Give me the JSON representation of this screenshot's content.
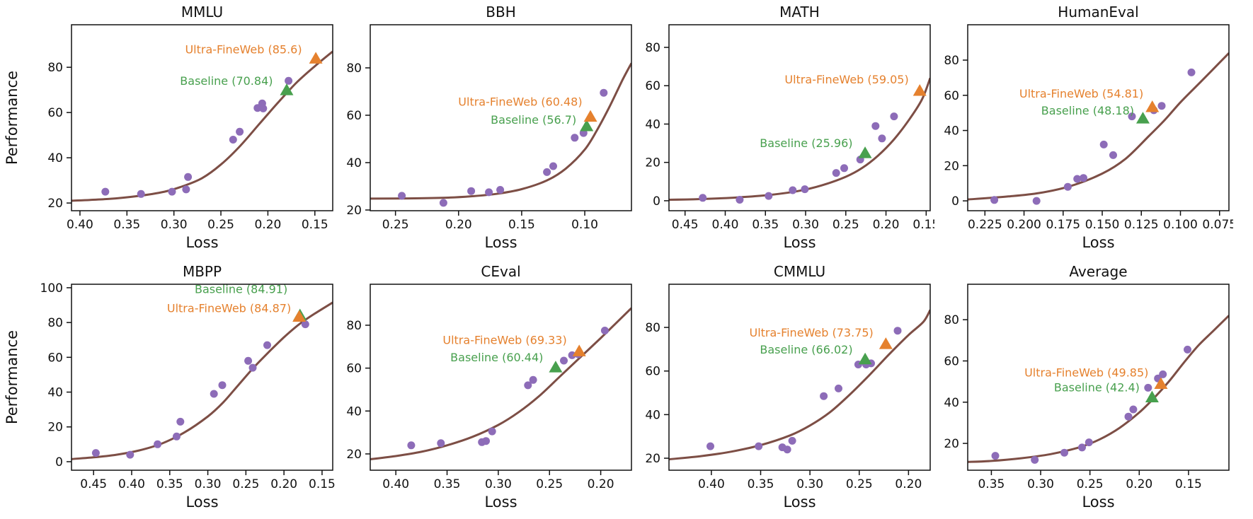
{
  "figure": {
    "xlabel": "Loss",
    "ylabel": "Performance",
    "series_names": {
      "ultra": "Ultra-FineWeb",
      "baseline": "Baseline"
    },
    "colors": {
      "scatter": "#8d6cb8",
      "curve": "#7d4e45",
      "ultra": "#e5812e",
      "baseline": "#48a04e",
      "text": "#111111"
    }
  },
  "chart_data": [
    {
      "type": "scatter",
      "title": "MMLU",
      "xlabel": "Loss",
      "ylabel": "Performance",
      "x_inverted": true,
      "xlim": [
        0.409,
        0.131
      ],
      "ylim": [
        16.6,
        98.8
      ],
      "x_ticks": [
        "0.40",
        "0.35",
        "0.30",
        "0.25",
        "0.20",
        "0.15"
      ],
      "y_ticks": [
        "20",
        "40",
        "60",
        "80"
      ],
      "points": [
        [
          0.373,
          25
        ],
        [
          0.335,
          24
        ],
        [
          0.302,
          25
        ],
        [
          0.287,
          26
        ],
        [
          0.285,
          31.5
        ],
        [
          0.237,
          48
        ],
        [
          0.23,
          51.5
        ],
        [
          0.211,
          62
        ],
        [
          0.206,
          64
        ],
        [
          0.205,
          61.8
        ],
        [
          0.178,
          74
        ]
      ],
      "curve": [
        [
          0.409,
          21
        ],
        [
          0.37,
          21.8
        ],
        [
          0.34,
          23
        ],
        [
          0.31,
          25
        ],
        [
          0.29,
          27.5
        ],
        [
          0.27,
          31
        ],
        [
          0.25,
          37
        ],
        [
          0.23,
          45
        ],
        [
          0.21,
          54.5
        ],
        [
          0.19,
          64
        ],
        [
          0.17,
          73
        ],
        [
          0.15,
          80.5
        ],
        [
          0.131,
          87
        ]
      ],
      "markers": {
        "ultra": {
          "x": 0.149,
          "y": 84,
          "value": 85.6,
          "label": "Ultra-FineWeb (85.6)",
          "label_offset": [
            -10,
            -7
          ]
        },
        "baseline": {
          "x": 0.18,
          "y": 70,
          "value": 70.84,
          "label": "Baseline (70.84)",
          "label_offset": [
            -10,
            -7
          ]
        }
      }
    },
    {
      "type": "scatter",
      "title": "BBH",
      "xlabel": "Loss",
      "ylabel": "",
      "x_inverted": true,
      "xlim": [
        0.27,
        0.063
      ],
      "ylim": [
        19.7,
        98.2
      ],
      "x_ticks": [
        "0.25",
        "0.20",
        "0.15",
        "0.10"
      ],
      "y_ticks": [
        "20",
        "40",
        "60",
        "80"
      ],
      "points": [
        [
          0.245,
          26
        ],
        [
          0.212,
          23
        ],
        [
          0.19,
          28
        ],
        [
          0.176,
          27.5
        ],
        [
          0.167,
          28.5
        ],
        [
          0.13,
          36
        ],
        [
          0.125,
          38.5
        ],
        [
          0.108,
          50.5
        ],
        [
          0.101,
          52.5
        ],
        [
          0.085,
          69.5
        ]
      ],
      "curve": [
        [
          0.27,
          24.8
        ],
        [
          0.24,
          24.9
        ],
        [
          0.21,
          25.2
        ],
        [
          0.19,
          25.8
        ],
        [
          0.17,
          26.8
        ],
        [
          0.15,
          28.8
        ],
        [
          0.13,
          32.5
        ],
        [
          0.115,
          37.5
        ],
        [
          0.1,
          45.5
        ],
        [
          0.09,
          54
        ],
        [
          0.08,
          64
        ],
        [
          0.07,
          75
        ],
        [
          0.063,
          82
        ]
      ],
      "markers": {
        "ultra": {
          "x": 0.0955,
          "y": 59.5,
          "value": 60.48,
          "label": "Ultra-FineWeb (60.48)",
          "label_offset": [
            -2,
            -15
          ]
        },
        "baseline": {
          "x": 0.0985,
          "y": 55.5,
          "value": 56.7,
          "label": "Baseline (56.7)",
          "label_offset": [
            -5,
            -3
          ]
        }
      }
    },
    {
      "type": "scatter",
      "title": "MATH",
      "xlabel": "Loss",
      "ylabel": "",
      "x_inverted": true,
      "xlim": [
        0.47,
        0.145
      ],
      "ylim": [
        -5.2,
        91.8
      ],
      "x_ticks": [
        "0.45",
        "0.40",
        "0.35",
        "0.30",
        "0.25",
        "0.20",
        "0.15"
      ],
      "y_ticks": [
        "0",
        "20",
        "40",
        "60",
        "80"
      ],
      "points": [
        [
          0.428,
          1.5
        ],
        [
          0.382,
          0.5
        ],
        [
          0.346,
          2.5
        ],
        [
          0.316,
          5.5
        ],
        [
          0.301,
          6
        ],
        [
          0.262,
          14.5
        ],
        [
          0.252,
          17
        ],
        [
          0.232,
          21.5
        ],
        [
          0.213,
          39
        ],
        [
          0.205,
          32.5
        ],
        [
          0.19,
          44
        ]
      ],
      "curve": [
        [
          0.47,
          0.5
        ],
        [
          0.43,
          0.9
        ],
        [
          0.39,
          1.6
        ],
        [
          0.35,
          2.8
        ],
        [
          0.31,
          5
        ],
        [
          0.28,
          8
        ],
        [
          0.25,
          12.5
        ],
        [
          0.23,
          17
        ],
        [
          0.21,
          23.5
        ],
        [
          0.19,
          32
        ],
        [
          0.17,
          43
        ],
        [
          0.155,
          53
        ],
        [
          0.145,
          64
        ]
      ],
      "markers": {
        "ultra": {
          "x": 0.158,
          "y": 57.5,
          "value": 59.05,
          "label": "Ultra-FineWeb (59.05)",
          "label_offset": [
            -6,
            -10
          ]
        },
        "baseline": {
          "x": 0.226,
          "y": 25,
          "value": 25.96,
          "label": "Baseline (25.96)",
          "label_offset": [
            -8,
            -8
          ]
        }
      }
    },
    {
      "type": "scatter",
      "title": "HumanEval",
      "xlabel": "Loss",
      "ylabel": "",
      "x_inverted": true,
      "xlim": [
        0.236,
        0.069
      ],
      "ylim": [
        -5.6,
        100.1
      ],
      "x_ticks": [
        "0.225",
        "0.200",
        "0.175",
        "0.150",
        "0.125",
        "0.100",
        "0.075"
      ],
      "y_ticks": [
        "0",
        "20",
        "40",
        "60",
        "80"
      ],
      "points": [
        [
          0.219,
          0.5
        ],
        [
          0.192,
          0
        ],
        [
          0.172,
          8
        ],
        [
          0.166,
          12.5
        ],
        [
          0.162,
          13
        ],
        [
          0.149,
          32
        ],
        [
          0.143,
          26
        ],
        [
          0.131,
          48
        ],
        [
          0.117,
          51.5
        ],
        [
          0.112,
          54
        ],
        [
          0.093,
          73
        ]
      ],
      "curve": [
        [
          0.236,
          0.8
        ],
        [
          0.21,
          2.5
        ],
        [
          0.19,
          4.5
        ],
        [
          0.17,
          8.5
        ],
        [
          0.15,
          15.5
        ],
        [
          0.135,
          24
        ],
        [
          0.12,
          37
        ],
        [
          0.11,
          46
        ],
        [
          0.1,
          56
        ],
        [
          0.09,
          65
        ],
        [
          0.08,
          74
        ],
        [
          0.069,
          84
        ]
      ],
      "markers": {
        "ultra": {
          "x": 0.118,
          "y": 53.5,
          "value": 54.81,
          "label": "Ultra-FineWeb (54.81)",
          "label_offset": [
            -3,
            -13
          ]
        },
        "baseline": {
          "x": 0.124,
          "y": 47,
          "value": 48.18,
          "label": "Baseline (48.18)",
          "label_offset": [
            -3,
            -5
          ]
        }
      }
    },
    {
      "type": "scatter",
      "title": "MBPP",
      "xlabel": "Loss",
      "ylabel": "Performance",
      "x_inverted": true,
      "xlim": [
        0.479,
        0.136
      ],
      "ylim": [
        -4.9,
        102
      ],
      "x_ticks": [
        "0.45",
        "0.40",
        "0.35",
        "0.30",
        "0.25",
        "0.20",
        "0.15"
      ],
      "y_ticks": [
        "0",
        "20",
        "40",
        "60",
        "80",
        "100"
      ],
      "points": [
        [
          0.447,
          5
        ],
        [
          0.402,
          4
        ],
        [
          0.366,
          10
        ],
        [
          0.341,
          14.5
        ],
        [
          0.336,
          23
        ],
        [
          0.292,
          39
        ],
        [
          0.281,
          44
        ],
        [
          0.247,
          58
        ],
        [
          0.241,
          54
        ],
        [
          0.222,
          67
        ],
        [
          0.172,
          79
        ]
      ],
      "curve": [
        [
          0.479,
          1.5
        ],
        [
          0.45,
          2.5
        ],
        [
          0.42,
          4
        ],
        [
          0.39,
          6.5
        ],
        [
          0.36,
          10.5
        ],
        [
          0.33,
          17
        ],
        [
          0.3,
          26
        ],
        [
          0.28,
          34
        ],
        [
          0.26,
          44
        ],
        [
          0.24,
          54
        ],
        [
          0.22,
          63
        ],
        [
          0.2,
          71.5
        ],
        [
          0.18,
          79
        ],
        [
          0.16,
          85
        ],
        [
          0.136,
          91.5
        ]
      ],
      "markers": {
        "ultra": {
          "x": 0.18,
          "y": 83.5,
          "value": 84.87,
          "label": "Ultra-FineWeb (84.87)",
          "label_offset": [
            -2,
            -6
          ]
        },
        "baseline": {
          "x": 0.179,
          "y": 84.3,
          "value": 84.91,
          "label": "Baseline (84.91)",
          "label_offset": [
            -8,
            -31
          ]
        }
      }
    },
    {
      "type": "scatter",
      "title": "CEval",
      "xlabel": "Loss",
      "ylabel": "",
      "x_inverted": true,
      "xlim": [
        0.425,
        0.17
      ],
      "ylim": [
        12.4,
        99.1
      ],
      "x_ticks": [
        "0.40",
        "0.35",
        "0.30",
        "0.25",
        "0.20"
      ],
      "y_ticks": [
        "20",
        "40",
        "60",
        "80"
      ],
      "points": [
        [
          0.385,
          24
        ],
        [
          0.356,
          25
        ],
        [
          0.316,
          25.5
        ],
        [
          0.312,
          26
        ],
        [
          0.306,
          30.5
        ],
        [
          0.271,
          52
        ],
        [
          0.266,
          54.5
        ],
        [
          0.236,
          63.5
        ],
        [
          0.228,
          66
        ],
        [
          0.222,
          66.5
        ],
        [
          0.196,
          77.5
        ]
      ],
      "curve": [
        [
          0.425,
          17.5
        ],
        [
          0.4,
          19
        ],
        [
          0.375,
          21
        ],
        [
          0.35,
          24
        ],
        [
          0.325,
          28
        ],
        [
          0.3,
          33.5
        ],
        [
          0.28,
          39.5
        ],
        [
          0.26,
          47
        ],
        [
          0.24,
          56
        ],
        [
          0.22,
          65
        ],
        [
          0.2,
          74
        ],
        [
          0.185,
          81
        ],
        [
          0.17,
          88
        ]
      ],
      "markers": {
        "ultra": {
          "x": 0.221,
          "y": 68,
          "value": 69.33,
          "label": "Ultra-FineWeb (69.33)",
          "label_offset": [
            -8,
            -10
          ]
        },
        "baseline": {
          "x": 0.244,
          "y": 60.5,
          "value": 60.44,
          "label": "Baseline (60.44)",
          "label_offset": [
            -8,
            -8
          ]
        }
      }
    },
    {
      "type": "scatter",
      "title": "CMMLU",
      "xlabel": "Loss",
      "ylabel": "",
      "x_inverted": true,
      "xlim": [
        0.443,
        0.178
      ],
      "ylim": [
        14.5,
        99.8
      ],
      "x_ticks": [
        "0.40",
        "0.35",
        "0.30",
        "0.25",
        "0.20"
      ],
      "y_ticks": [
        "20",
        "40",
        "60",
        "80"
      ],
      "points": [
        [
          0.401,
          25.5
        ],
        [
          0.352,
          25.5
        ],
        [
          0.328,
          25
        ],
        [
          0.323,
          24
        ],
        [
          0.318,
          28
        ],
        [
          0.286,
          48.5
        ],
        [
          0.271,
          52
        ],
        [
          0.251,
          63
        ],
        [
          0.243,
          63
        ],
        [
          0.238,
          63.5
        ],
        [
          0.211,
          78.5
        ]
      ],
      "curve": [
        [
          0.443,
          19.5
        ],
        [
          0.41,
          21
        ],
        [
          0.38,
          23
        ],
        [
          0.35,
          26
        ],
        [
          0.32,
          30.5
        ],
        [
          0.3,
          35
        ],
        [
          0.28,
          41
        ],
        [
          0.26,
          49
        ],
        [
          0.24,
          58
        ],
        [
          0.22,
          67.5
        ],
        [
          0.2,
          76.5
        ],
        [
          0.185,
          82.5
        ],
        [
          0.178,
          88
        ]
      ],
      "markers": {
        "ultra": {
          "x": 0.223,
          "y": 72.5,
          "value": 73.75,
          "label": "Ultra-FineWeb (73.75)",
          "label_offset": [
            -8,
            -10
          ]
        },
        "baseline": {
          "x": 0.244,
          "y": 65.5,
          "value": 66.02,
          "label": "Baseline (66.02)",
          "label_offset": [
            -8,
            -8
          ]
        }
      }
    },
    {
      "type": "scatter",
      "title": "Average",
      "xlabel": "Loss",
      "ylabel": "",
      "x_inverted": true,
      "xlim": [
        0.374,
        0.109
      ],
      "ylim": [
        7.0,
        97.2
      ],
      "x_ticks": [
        "0.35",
        "0.30",
        "0.25",
        "0.20",
        "0.15"
      ],
      "y_ticks": [
        "20",
        "40",
        "60",
        "80"
      ],
      "points": [
        [
          0.346,
          14
        ],
        [
          0.306,
          12
        ],
        [
          0.276,
          15.5
        ],
        [
          0.258,
          18
        ],
        [
          0.251,
          20.5
        ],
        [
          0.211,
          33
        ],
        [
          0.206,
          36.5
        ],
        [
          0.191,
          47
        ],
        [
          0.181,
          51.5
        ],
        [
          0.176,
          53.5
        ],
        [
          0.151,
          65.5
        ]
      ],
      "curve": [
        [
          0.374,
          11
        ],
        [
          0.35,
          11.5
        ],
        [
          0.32,
          12.8
        ],
        [
          0.29,
          14.8
        ],
        [
          0.26,
          18.2
        ],
        [
          0.24,
          22
        ],
        [
          0.22,
          27.5
        ],
        [
          0.2,
          35
        ],
        [
          0.185,
          42
        ],
        [
          0.17,
          50
        ],
        [
          0.155,
          59
        ],
        [
          0.14,
          67.5
        ],
        [
          0.125,
          74.5
        ],
        [
          0.109,
          82
        ]
      ],
      "markers": {
        "ultra": {
          "x": 0.178,
          "y": 49,
          "value": 49.85,
          "label": "Ultra-FineWeb (49.85)",
          "label_offset": [
            -8,
            -10
          ]
        },
        "baseline": {
          "x": 0.187,
          "y": 42.5,
          "value": 42.4,
          "label": "Baseline (42.4)",
          "label_offset": [
            -8,
            -8
          ]
        }
      }
    }
  ]
}
